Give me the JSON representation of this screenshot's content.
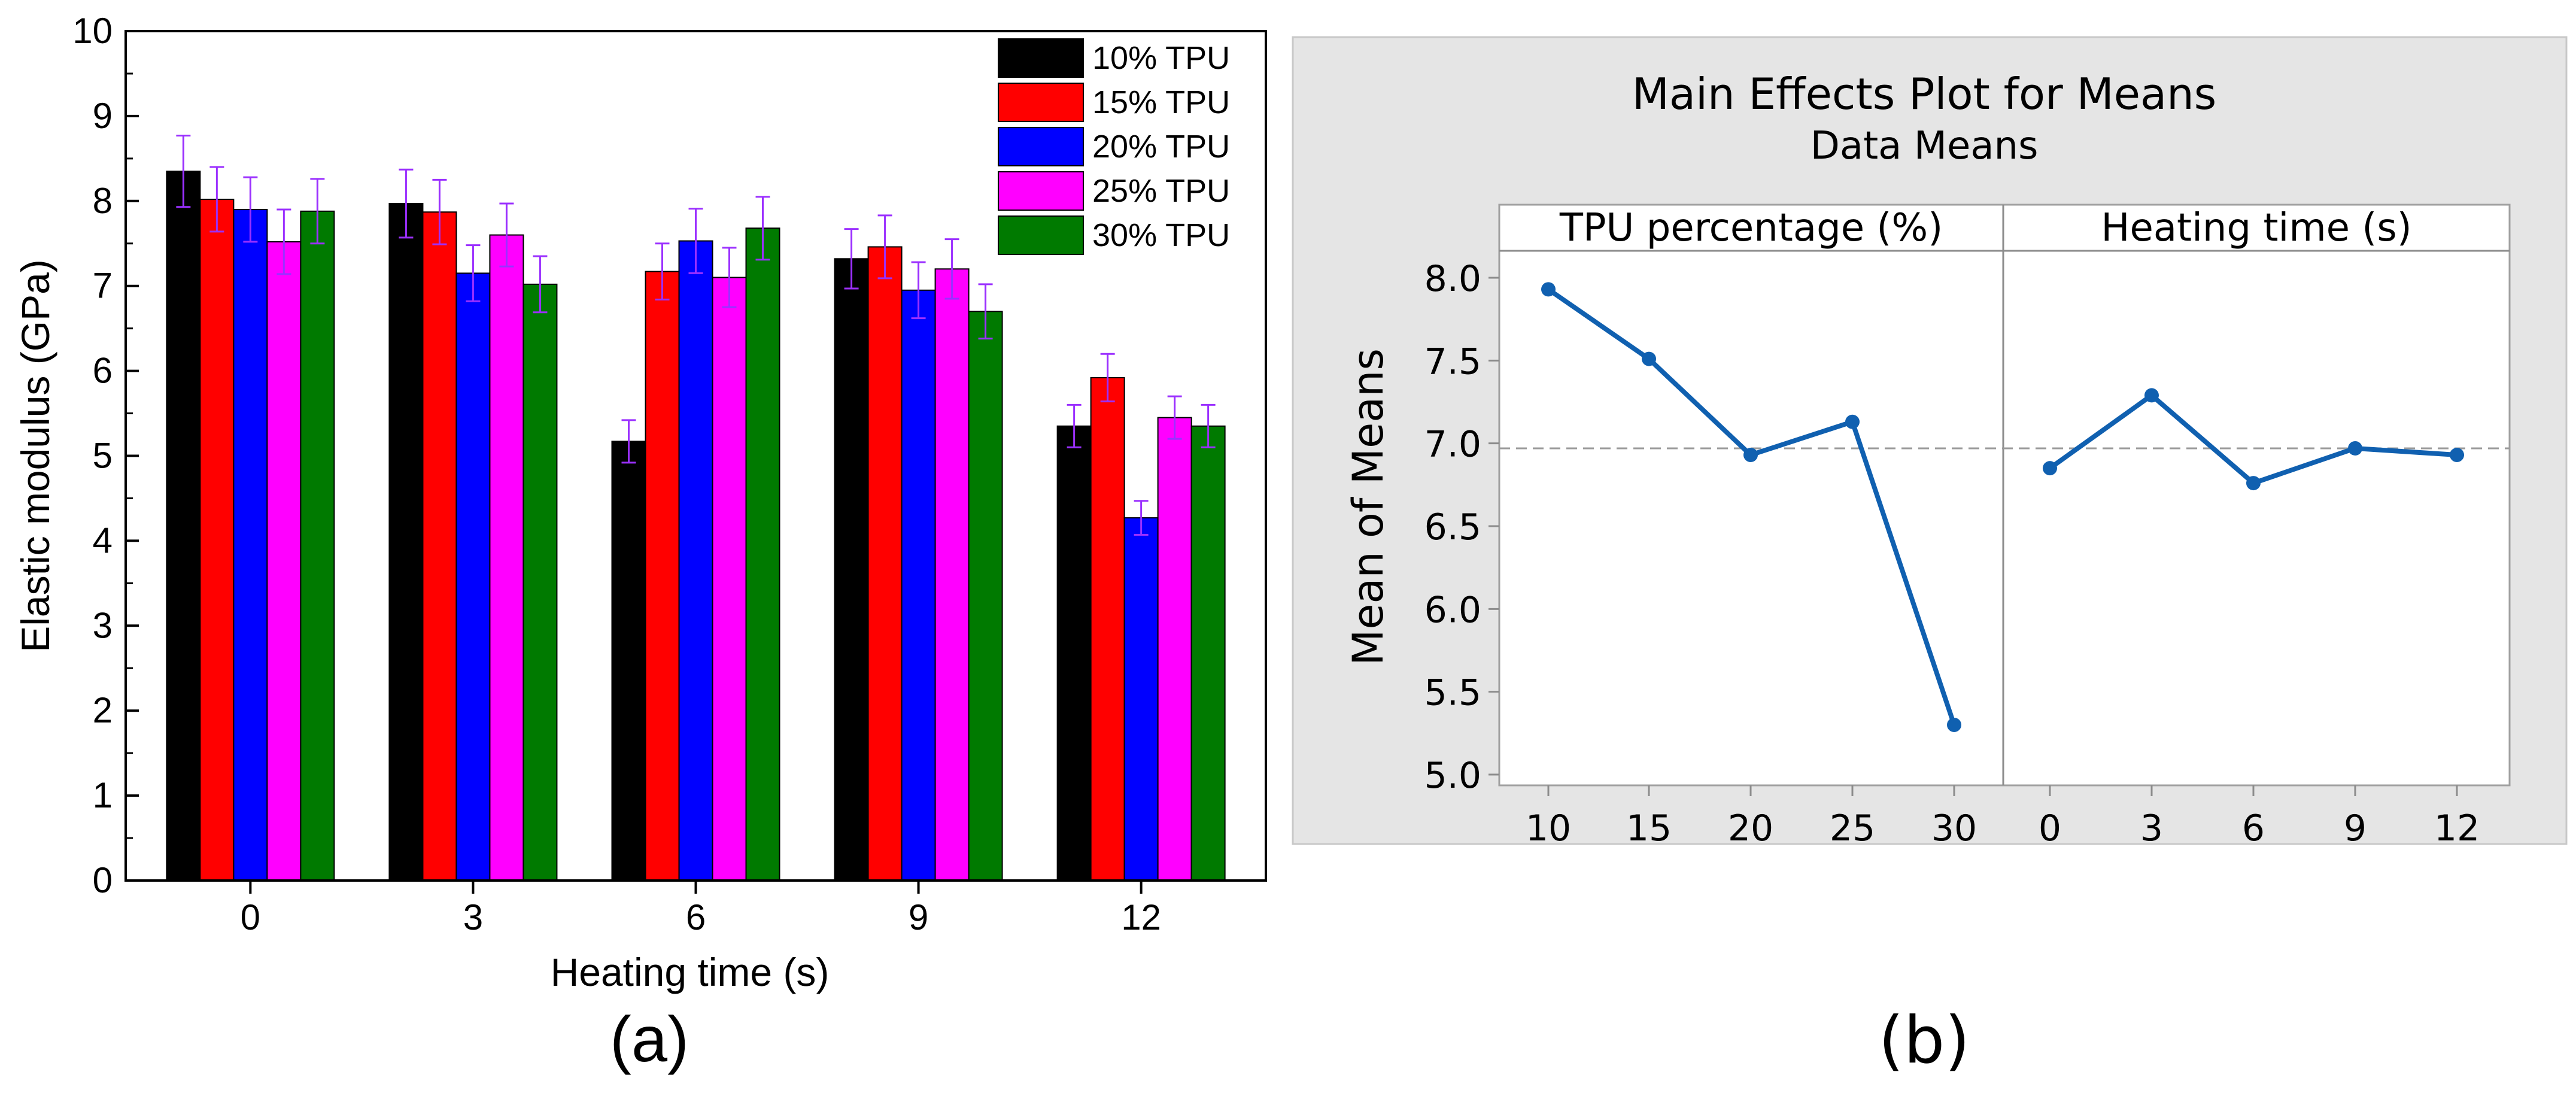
{
  "chart_data": [
    {
      "type": "bar",
      "panel_label": "(a)",
      "title": "",
      "xlabel": "Heating time (s)",
      "ylabel": "Elastic modulus (GPa)",
      "ylim": [
        0,
        10
      ],
      "yticks": [
        "0",
        "1",
        "2",
        "3",
        "4",
        "5",
        "6",
        "7",
        "8",
        "9",
        "10"
      ],
      "categories": [
        "0",
        "3",
        "6",
        "9",
        "12"
      ],
      "legend_position": "top-right",
      "error_bar_color": "#9b30ff",
      "series": [
        {
          "name": "10% TPU",
          "color": "#000000",
          "values": [
            8.35,
            7.97,
            5.17,
            7.32,
            5.35
          ],
          "errors": [
            0.42,
            0.4,
            0.25,
            0.35,
            0.25
          ]
        },
        {
          "name": "15% TPU",
          "color": "#ff0000",
          "values": [
            8.02,
            7.87,
            7.17,
            7.46,
            5.92
          ],
          "errors": [
            0.38,
            0.38,
            0.33,
            0.37,
            0.28
          ]
        },
        {
          "name": "20% TPU",
          "color": "#0000ff",
          "values": [
            7.9,
            7.15,
            7.53,
            6.95,
            4.27
          ],
          "errors": [
            0.38,
            0.33,
            0.38,
            0.33,
            0.2
          ]
        },
        {
          "name": "25% TPU",
          "color": "#ff00ff",
          "values": [
            7.52,
            7.6,
            7.1,
            7.2,
            5.45
          ],
          "errors": [
            0.38,
            0.37,
            0.35,
            0.35,
            0.25
          ]
        },
        {
          "name": "30% TPU",
          "color": "#007a00",
          "values": [
            7.88,
            7.02,
            7.68,
            6.7,
            5.35
          ],
          "errors": [
            0.38,
            0.33,
            0.37,
            0.32,
            0.25
          ]
        }
      ]
    },
    {
      "type": "line",
      "panel_label": "(b)",
      "title": "Main Effects Plot for Means",
      "subtitle": "Data Means",
      "ylabel": "Mean of Means",
      "ylim": [
        5.0,
        8.2
      ],
      "yticks": [
        "5.0",
        "5.5",
        "6.0",
        "6.5",
        "7.0",
        "7.5",
        "8.0"
      ],
      "reference_line": 6.97,
      "line_color": "#1060b0",
      "panels": [
        {
          "label": "TPU percentage (%)",
          "categories": [
            "10",
            "15",
            "20",
            "25",
            "30"
          ],
          "values": [
            7.93,
            7.51,
            6.93,
            7.13,
            5.3
          ]
        },
        {
          "label": "Heating time (s)",
          "categories": [
            "0",
            "3",
            "6",
            "9",
            "12"
          ],
          "values": [
            6.85,
            7.29,
            6.76,
            6.97,
            6.93
          ]
        }
      ]
    }
  ]
}
